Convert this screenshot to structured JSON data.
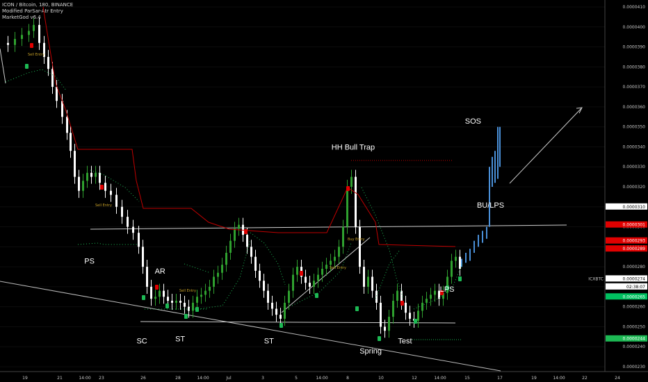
{
  "header": {
    "line1": "ICON / Bitcoin, 180, BINANCE",
    "line2": "Modified ParSar-Atr  Entry",
    "line3": "MarketGod v6.4"
  },
  "chart_data": {
    "type": "candlestick",
    "title": "ICON / Bitcoin, 180, BINANCE",
    "ylim": [
      2.3e-05,
      4.1e-05
    ],
    "y_ticks": [
      "0.0000410",
      "0.0000400",
      "0.0000390",
      "0.0000380",
      "0.0000370",
      "0.0000360",
      "0.0000350",
      "0.0000340",
      "0.0000330",
      "0.0000320",
      "0.0000310",
      "0.0000300",
      "0.0000290",
      "0.0000280",
      "0.0000270",
      "0.0000260",
      "0.0000250",
      "0.0000240",
      "0.0000230"
    ],
    "x_ticks": [
      "19",
      "21",
      "14:00",
      "23",
      "26",
      "28",
      "14:00",
      "Jul",
      "3",
      "5",
      "14:00",
      "8",
      "10",
      "12",
      "14:00",
      "15",
      "17",
      "19",
      "14:00",
      "22",
      "24"
    ],
    "price_badges": [
      {
        "text": "0.0000310",
        "value": 3.1e-05,
        "color": "#ffffff",
        "text_color": "#000000"
      },
      {
        "text": "0.0000301",
        "value": 3.01e-05,
        "color": "#e00000",
        "text_color": "#ffffff"
      },
      {
        "text": "0.0000293",
        "value": 2.93e-05,
        "color": "#e00000",
        "text_color": "#ffffff"
      },
      {
        "text": "0.0000289",
        "value": 2.89e-05,
        "color": "#e00000",
        "text_color": "#ffffff"
      },
      {
        "text": "0.0000274",
        "value": 2.74e-05,
        "color": "#ffffff",
        "text_color": "#000000"
      },
      {
        "text": "02:38:07",
        "value": 2.7e-05,
        "color": "#ffffff",
        "text_color": "#000000"
      },
      {
        "text": "0.0000265",
        "value": 2.65e-05,
        "color": "#00c060",
        "text_color": "#ffffff"
      },
      {
        "text": "0.0000244",
        "value": 2.44e-05,
        "color": "#1db954",
        "text_color": "#ffffff"
      }
    ],
    "symbol_tag": "ICXBTC",
    "annotations": [
      {
        "text": "PS",
        "x_frac": 0.138,
        "value": 2.83e-05
      },
      {
        "text": "AR",
        "x_frac": 0.247,
        "value": 2.78e-05
      },
      {
        "text": "SC",
        "x_frac": 0.219,
        "value": 2.43e-05
      },
      {
        "text": "ST",
        "x_frac": 0.278,
        "value": 2.44e-05
      },
      {
        "text": "ST",
        "x_frac": 0.415,
        "value": 2.43e-05
      },
      {
        "text": "HH Bull Trap",
        "x_frac": 0.545,
        "value": 3.4e-05
      },
      {
        "text": "SOS",
        "x_frac": 0.73,
        "value": 3.53e-05
      },
      {
        "text": "BU/LPS",
        "x_frac": 0.757,
        "value": 3.11e-05
      },
      {
        "text": "LPS",
        "x_frac": 0.69,
        "value": 2.69e-05
      },
      {
        "text": "Spring",
        "x_frac": 0.572,
        "value": 2.38e-05
      },
      {
        "text": "Test",
        "x_frac": 0.625,
        "value": 2.43e-05
      }
    ],
    "signal_labels": [
      "Sell Entry",
      "Sell Entry",
      "Sell Entry",
      "Buy Entry",
      "Sell Entry"
    ],
    "colors": {
      "up": "#2fa12f",
      "down": "#ffffff",
      "projection": "#4a90d9",
      "stop": "#c00000"
    }
  }
}
